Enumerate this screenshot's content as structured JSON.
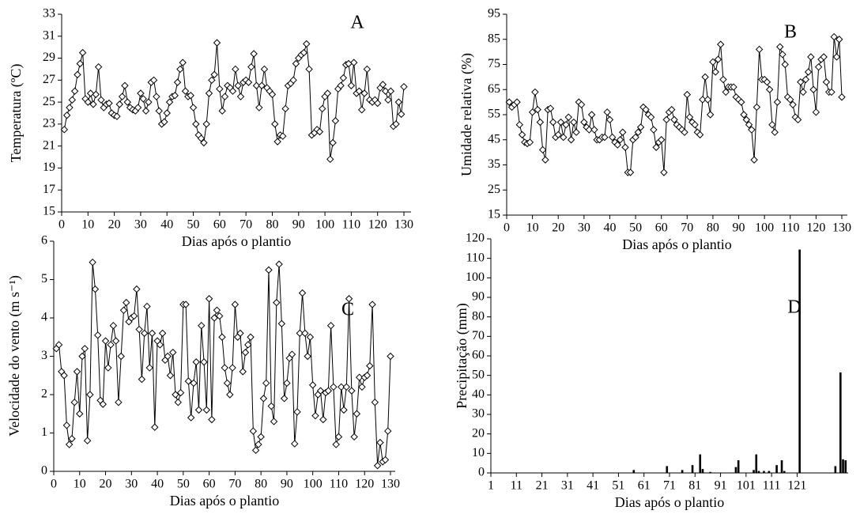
{
  "chart_data": [
    {
      "type": "line",
      "title": "A",
      "y_label": "Temperatura (ºC)",
      "x_label": "Dias após o plantio",
      "color": "#000000",
      "marker": "diamond",
      "xlim": [
        0,
        130
      ],
      "ylim": [
        15,
        33
      ],
      "xticks": [
        0,
        10,
        20,
        30,
        40,
        50,
        60,
        70,
        80,
        90,
        100,
        110,
        120,
        130
      ],
      "yticks": [
        15,
        17,
        19,
        21,
        23,
        25,
        27,
        29,
        31,
        33
      ],
      "grid": false,
      "x": [
        1,
        2,
        3,
        4,
        5,
        6,
        7,
        8,
        9,
        10,
        11,
        12,
        13,
        14,
        15,
        16,
        17,
        18,
        19,
        20,
        21,
        22,
        23,
        24,
        25,
        26,
        27,
        28,
        29,
        30,
        31,
        32,
        33,
        34,
        35,
        36,
        37,
        38,
        39,
        40,
        41,
        42,
        43,
        44,
        45,
        46,
        47,
        48,
        49,
        50,
        51,
        52,
        53,
        54,
        55,
        56,
        57,
        58,
        59,
        60,
        61,
        62,
        63,
        64,
        65,
        66,
        67,
        68,
        69,
        70,
        71,
        72,
        73,
        74,
        75,
        76,
        77,
        78,
        79,
        80,
        81,
        82,
        83,
        84,
        85,
        86,
        87,
        88,
        89,
        90,
        91,
        92,
        93,
        94,
        95,
        96,
        97,
        98,
        99,
        100,
        101,
        102,
        103,
        104,
        105,
        106,
        107,
        108,
        109,
        110,
        111,
        112,
        113,
        114,
        115,
        116,
        117,
        118,
        119,
        120,
        121,
        122,
        123,
        124,
        125,
        126,
        127,
        128,
        129,
        130
      ],
      "values": [
        22.5,
        23.8,
        24.5,
        25.2,
        26,
        27.5,
        28.5,
        29.5,
        25.3,
        25,
        25.8,
        24.8,
        25.7,
        28.2,
        25.2,
        24.5,
        24.8,
        24.9,
        24,
        23.8,
        23.7,
        24.8,
        25.5,
        26.5,
        25,
        24.5,
        24.3,
        24.2,
        24.5,
        25.8,
        25.3,
        24.2,
        25,
        26.8,
        27,
        25.5,
        24.2,
        23,
        23.2,
        24,
        25,
        25.5,
        25.6,
        26.8,
        28,
        28.6,
        26,
        25.5,
        25.6,
        24.5,
        23,
        22,
        21.7,
        21.3,
        23,
        25.8,
        27,
        27.5,
        30.4,
        26.2,
        24.2,
        25.5,
        26.5,
        26.3,
        26,
        28,
        26.5,
        25.5,
        26.8,
        27,
        26.8,
        28.2,
        29.4,
        26.5,
        24.5,
        26.5,
        28,
        26.3,
        26,
        25.7,
        23,
        21.4,
        22,
        21.9,
        24.4,
        26.5,
        26.7,
        27,
        28.5,
        29,
        29.3,
        29.5,
        30.3,
        28,
        22,
        22.2,
        22.5,
        22.3,
        24.4,
        25.5,
        25.8,
        19.8,
        21.3,
        23.3,
        26.2,
        26.5,
        27.2,
        28.4,
        28.5,
        26.5,
        28.6,
        25.8,
        26,
        24.3,
        25.8,
        28,
        25.2,
        25,
        25.2,
        24.9,
        26.3,
        26.6,
        26,
        25.2,
        26,
        22.8,
        23,
        25,
        23.9,
        26.4
      ]
    },
    {
      "type": "line",
      "title": "B",
      "y_label": "Umidade relativa (%)",
      "x_label": "Dias após o plantio",
      "color": "#000000",
      "marker": "diamond",
      "xlim": [
        0,
        130
      ],
      "ylim": [
        15,
        95
      ],
      "xticks": [
        0,
        10,
        20,
        30,
        40,
        50,
        60,
        70,
        80,
        90,
        100,
        110,
        120,
        130
      ],
      "yticks": [
        15,
        25,
        35,
        45,
        55,
        65,
        75,
        85,
        95
      ],
      "grid": false,
      "x": [
        1,
        2,
        3,
        4,
        5,
        6,
        7,
        8,
        9,
        10,
        11,
        12,
        13,
        14,
        15,
        16,
        17,
        18,
        19,
        20,
        21,
        22,
        23,
        24,
        25,
        26,
        27,
        28,
        29,
        30,
        31,
        32,
        33,
        34,
        35,
        36,
        37,
        38,
        39,
        40,
        41,
        42,
        43,
        44,
        45,
        46,
        47,
        48,
        49,
        50,
        51,
        52,
        53,
        54,
        55,
        56,
        57,
        58,
        59,
        60,
        61,
        62,
        63,
        64,
        65,
        66,
        67,
        68,
        69,
        70,
        71,
        72,
        73,
        74,
        75,
        76,
        77,
        78,
        79,
        80,
        81,
        82,
        83,
        84,
        85,
        86,
        87,
        88,
        89,
        90,
        91,
        92,
        93,
        94,
        95,
        96,
        97,
        98,
        99,
        100,
        101,
        102,
        103,
        104,
        105,
        106,
        107,
        108,
        109,
        110,
        111,
        112,
        113,
        114,
        115,
        116,
        117,
        118,
        119,
        120,
        121,
        122,
        123,
        124,
        125,
        126,
        127,
        128,
        129,
        130
      ],
      "values": [
        60,
        58,
        59,
        60,
        51,
        47,
        44,
        43.5,
        44,
        56,
        64,
        57,
        52,
        41,
        37,
        57,
        57.5,
        52,
        46,
        47,
        52,
        46,
        51,
        54,
        45,
        52,
        48,
        60,
        59,
        52,
        50,
        49,
        55,
        49,
        45,
        45,
        46,
        46,
        56,
        53,
        46,
        44,
        43,
        45,
        48,
        42,
        32,
        32,
        45,
        46,
        48,
        50,
        58,
        57,
        55,
        54,
        49,
        42,
        44,
        45,
        32,
        53,
        56,
        57,
        53,
        51,
        50,
        49,
        48,
        63,
        54,
        52,
        51,
        48,
        47,
        61,
        70,
        61,
        55,
        76,
        72,
        77,
        83,
        69,
        64,
        66,
        66,
        66,
        62,
        61,
        60,
        55,
        53,
        51,
        49,
        37,
        58,
        81,
        69,
        69,
        68,
        65,
        51,
        48,
        60,
        82,
        79,
        75,
        62,
        61,
        59,
        54,
        53,
        68,
        64,
        69,
        72,
        78,
        65,
        56,
        74,
        77,
        78,
        68,
        64,
        64,
        86,
        78,
        85,
        62
      ]
    },
    {
      "type": "line",
      "title": "C",
      "y_label": "Velocidade do vento  (m s⁻¹)",
      "x_label": "Dias após o plantio",
      "color": "#000000",
      "marker": "diamond",
      "xlim": [
        0,
        130
      ],
      "ylim": [
        0,
        6
      ],
      "xticks": [
        0,
        10,
        20,
        30,
        40,
        50,
        60,
        70,
        80,
        90,
        100,
        110,
        120,
        130
      ],
      "yticks": [
        0,
        1,
        2,
        3,
        4,
        5,
        6
      ],
      "grid": false,
      "x": [
        1,
        2,
        3,
        4,
        5,
        6,
        7,
        8,
        9,
        10,
        11,
        12,
        13,
        14,
        15,
        16,
        17,
        18,
        19,
        20,
        21,
        22,
        23,
        24,
        25,
        26,
        27,
        28,
        29,
        30,
        31,
        32,
        33,
        34,
        35,
        36,
        37,
        38,
        39,
        40,
        41,
        42,
        43,
        44,
        45,
        46,
        47,
        48,
        49,
        50,
        51,
        52,
        53,
        54,
        55,
        56,
        57,
        58,
        59,
        60,
        61,
        62,
        63,
        64,
        65,
        66,
        67,
        68,
        69,
        70,
        71,
        72,
        73,
        74,
        75,
        76,
        77,
        78,
        79,
        80,
        81,
        82,
        83,
        84,
        85,
        86,
        87,
        88,
        89,
        90,
        91,
        92,
        93,
        94,
        95,
        96,
        97,
        98,
        99,
        100,
        101,
        102,
        103,
        104,
        105,
        106,
        107,
        108,
        109,
        110,
        111,
        112,
        113,
        114,
        115,
        116,
        117,
        118,
        119,
        120,
        121,
        122,
        123,
        124,
        125,
        126,
        127,
        128,
        129,
        130
      ],
      "values": [
        3.2,
        3.3,
        2.6,
        2.5,
        1.2,
        0.7,
        0.85,
        1.8,
        2.6,
        1.5,
        3,
        3.2,
        0.8,
        2,
        5.45,
        4.75,
        3.55,
        1.85,
        1.75,
        3.4,
        2.7,
        3.3,
        3.8,
        3.4,
        1.8,
        3,
        4.2,
        4.4,
        3.9,
        4,
        4.05,
        4.75,
        3.7,
        2.4,
        3.6,
        4.3,
        2.7,
        3.6,
        1.15,
        3.4,
        3.3,
        3.6,
        2.9,
        3,
        2.5,
        3.1,
        2,
        1.8,
        2.05,
        4.35,
        4.35,
        2.35,
        1.4,
        2.3,
        2.85,
        1.6,
        3.8,
        2.85,
        1.6,
        4.5,
        1.35,
        4,
        4.2,
        4.05,
        3.5,
        2.7,
        2.3,
        2,
        2.7,
        4.35,
        3.5,
        3.6,
        2.6,
        3.1,
        3.3,
        3.5,
        1.05,
        0.55,
        0.7,
        0.9,
        1.9,
        2.3,
        5.25,
        1.7,
        1.3,
        4.4,
        5.4,
        3.85,
        1.9,
        2.3,
        2.95,
        3.05,
        0.72,
        1.55,
        3.6,
        4.65,
        3.6,
        3,
        3.5,
        2.25,
        1.45,
        2,
        2.1,
        1.35,
        2.05,
        2.1,
        3.8,
        2.2,
        0.7,
        0.9,
        2.2,
        1.6,
        2.2,
        4.5,
        2.1,
        0.9,
        1.5,
        2.45,
        2.2,
        2.45,
        2.5,
        2.75,
        4.35,
        1.8,
        0.15,
        0.75,
        0.25,
        0.3,
        1.05,
        3
      ]
    },
    {
      "type": "bar",
      "title": "D",
      "y_label": "Precipitação (mm)",
      "x_label": "Dias após o plantio",
      "color": "#000000",
      "xlim": [
        1,
        141
      ],
      "ylim": [
        0,
        120
      ],
      "xticks": [
        1,
        11,
        21,
        31,
        41,
        51,
        61,
        71,
        81,
        91,
        101,
        111,
        121
      ],
      "yticks": [
        0,
        10,
        20,
        30,
        40,
        50,
        60,
        70,
        80,
        90,
        100,
        110,
        120
      ],
      "grid": false,
      "x": [
        57,
        70,
        76,
        80,
        83,
        84,
        87,
        97,
        98,
        104,
        105,
        106,
        108,
        110,
        113,
        115,
        116,
        122,
        136,
        138,
        139,
        140
      ],
      "values": [
        1.5,
        3.5,
        1.5,
        4,
        9.5,
        2,
        0.5,
        3,
        6.5,
        1.5,
        9.5,
        1,
        1,
        1,
        4,
        6.5,
        1,
        114.5,
        3.5,
        51.5,
        7,
        6.5
      ]
    }
  ]
}
